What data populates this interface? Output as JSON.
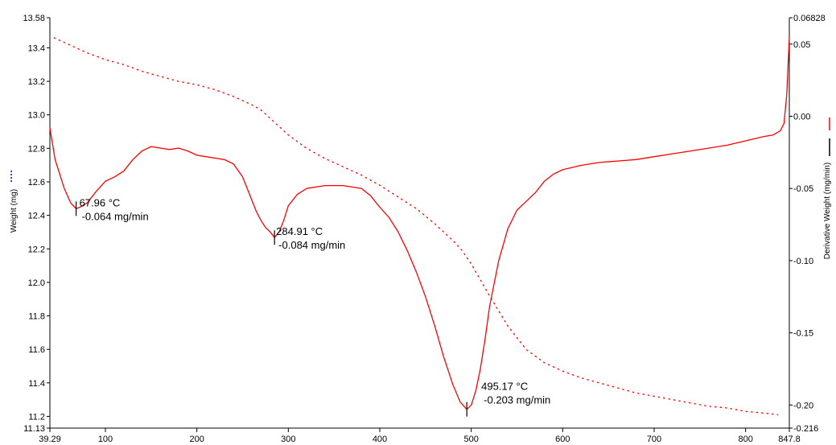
{
  "chart_data": {
    "type": "line",
    "title": "",
    "xlabel": "",
    "ylabel_left": "Weight (mg)",
    "ylabel_right": "Derivative Weight (mg/min)",
    "xlim": [
      39.29,
      847.8
    ],
    "ylim_left": [
      11.13,
      13.58
    ],
    "ylim_right": [
      -0.216,
      0.06828
    ],
    "grid": false,
    "x_ticks": [
      {
        "value": 39.29,
        "label": "39.29"
      },
      {
        "value": 100,
        "label": "100"
      },
      {
        "value": 200,
        "label": "200"
      },
      {
        "value": 300,
        "label": "300"
      },
      {
        "value": 400,
        "label": "400"
      },
      {
        "value": 500,
        "label": "500"
      },
      {
        "value": 600,
        "label": "600"
      },
      {
        "value": 700,
        "label": "700"
      },
      {
        "value": 800,
        "label": "800"
      },
      {
        "value": 847.8,
        "label": "847.8"
      }
    ],
    "y_left_ticks": [
      {
        "value": 13.58,
        "label": "13.58"
      },
      {
        "value": 13.4,
        "label": "13.4"
      },
      {
        "value": 13.2,
        "label": "13.2"
      },
      {
        "value": 13.0,
        "label": "13.0"
      },
      {
        "value": 12.8,
        "label": "12.8"
      },
      {
        "value": 12.6,
        "label": "12.6"
      },
      {
        "value": 12.4,
        "label": "12.4"
      },
      {
        "value": 12.2,
        "label": "12.2"
      },
      {
        "value": 12.0,
        "label": "12.0"
      },
      {
        "value": 11.8,
        "label": "11.8"
      },
      {
        "value": 11.6,
        "label": "11.6"
      },
      {
        "value": 11.4,
        "label": "11.4"
      },
      {
        "value": 11.2,
        "label": "11.2"
      },
      {
        "value": 11.13,
        "label": "11.13"
      }
    ],
    "y_right_ticks": [
      {
        "value": 0.06828,
        "label": "0.06828"
      },
      {
        "value": 0.05,
        "label": "0.05"
      },
      {
        "value": 0.0,
        "label": "0.00"
      },
      {
        "value": -0.05,
        "label": "-0.05"
      },
      {
        "value": -0.1,
        "label": "-0.10"
      },
      {
        "value": -0.15,
        "label": "-0.15"
      },
      {
        "value": -0.2,
        "label": "-0.20"
      },
      {
        "value": -0.216,
        "label": "-0.216"
      }
    ],
    "series": [
      {
        "axis": "left",
        "style": "dotted",
        "color": "#ff0000",
        "points": [
          [
            44,
            13.46
          ],
          [
            60,
            13.42
          ],
          [
            80,
            13.37
          ],
          [
            100,
            13.33
          ],
          [
            120,
            13.3
          ],
          [
            140,
            13.26
          ],
          [
            160,
            13.23
          ],
          [
            180,
            13.2
          ],
          [
            200,
            13.18
          ],
          [
            220,
            13.15
          ],
          [
            240,
            13.11
          ],
          [
            260,
            13.06
          ],
          [
            270,
            13.03
          ],
          [
            280,
            12.98
          ],
          [
            290,
            12.93
          ],
          [
            300,
            12.88
          ],
          [
            320,
            12.8
          ],
          [
            340,
            12.74
          ],
          [
            360,
            12.69
          ],
          [
            380,
            12.64
          ],
          [
            400,
            12.58
          ],
          [
            420,
            12.51
          ],
          [
            440,
            12.44
          ],
          [
            460,
            12.35
          ],
          [
            480,
            12.25
          ],
          [
            490,
            12.19
          ],
          [
            500,
            12.11
          ],
          [
            520,
            11.92
          ],
          [
            540,
            11.74
          ],
          [
            560,
            11.6
          ],
          [
            580,
            11.52
          ],
          [
            600,
            11.47
          ],
          [
            620,
            11.43
          ],
          [
            640,
            11.4
          ],
          [
            660,
            11.37
          ],
          [
            680,
            11.34
          ],
          [
            700,
            11.32
          ],
          [
            720,
            11.3
          ],
          [
            740,
            11.28
          ],
          [
            760,
            11.26
          ],
          [
            780,
            11.25
          ],
          [
            800,
            11.23
          ],
          [
            820,
            11.22
          ],
          [
            835,
            11.21
          ]
        ]
      },
      {
        "axis": "right",
        "style": "solid",
        "color": "#ff0000",
        "points": [
          [
            39.29,
            -0.008
          ],
          [
            45,
            -0.03
          ],
          [
            55,
            -0.05
          ],
          [
            62,
            -0.06
          ],
          [
            67.96,
            -0.064
          ],
          [
            72,
            -0.063
          ],
          [
            80,
            -0.06
          ],
          [
            90,
            -0.052
          ],
          [
            100,
            -0.045
          ],
          [
            110,
            -0.042
          ],
          [
            120,
            -0.038
          ],
          [
            130,
            -0.03
          ],
          [
            140,
            -0.024
          ],
          [
            150,
            -0.021
          ],
          [
            160,
            -0.022
          ],
          [
            170,
            -0.023
          ],
          [
            180,
            -0.022
          ],
          [
            190,
            -0.024
          ],
          [
            200,
            -0.027
          ],
          [
            210,
            -0.028
          ],
          [
            220,
            -0.029
          ],
          [
            230,
            -0.03
          ],
          [
            240,
            -0.033
          ],
          [
            250,
            -0.042
          ],
          [
            260,
            -0.058
          ],
          [
            265,
            -0.066
          ],
          [
            270,
            -0.072
          ],
          [
            275,
            -0.077
          ],
          [
            280,
            -0.08
          ],
          [
            284.91,
            -0.084
          ],
          [
            290,
            -0.08
          ],
          [
            295,
            -0.072
          ],
          [
            300,
            -0.062
          ],
          [
            310,
            -0.054
          ],
          [
            320,
            -0.05
          ],
          [
            340,
            -0.048
          ],
          [
            360,
            -0.048
          ],
          [
            380,
            -0.05
          ],
          [
            390,
            -0.055
          ],
          [
            400,
            -0.063
          ],
          [
            410,
            -0.07
          ],
          [
            420,
            -0.08
          ],
          [
            430,
            -0.093
          ],
          [
            440,
            -0.108
          ],
          [
            450,
            -0.125
          ],
          [
            460,
            -0.145
          ],
          [
            470,
            -0.167
          ],
          [
            480,
            -0.186
          ],
          [
            488,
            -0.198
          ],
          [
            495.17,
            -0.203
          ],
          [
            500,
            -0.2
          ],
          [
            505,
            -0.19
          ],
          [
            510,
            -0.175
          ],
          [
            515,
            -0.155
          ],
          [
            520,
            -0.132
          ],
          [
            530,
            -0.1
          ],
          [
            540,
            -0.078
          ],
          [
            550,
            -0.065
          ],
          [
            560,
            -0.059
          ],
          [
            570,
            -0.053
          ],
          [
            580,
            -0.045
          ],
          [
            590,
            -0.04
          ],
          [
            600,
            -0.037
          ],
          [
            620,
            -0.034
          ],
          [
            640,
            -0.032
          ],
          [
            660,
            -0.031
          ],
          [
            680,
            -0.03
          ],
          [
            700,
            -0.028
          ],
          [
            720,
            -0.026
          ],
          [
            740,
            -0.024
          ],
          [
            760,
            -0.022
          ],
          [
            780,
            -0.02
          ],
          [
            800,
            -0.017
          ],
          [
            820,
            -0.014
          ],
          [
            830,
            -0.013
          ],
          [
            838,
            -0.01
          ],
          [
            842,
            -0.005
          ],
          [
            845,
            0.015
          ],
          [
            847.8,
            0.055
          ]
        ]
      }
    ],
    "annotations": [
      {
        "x": 67.96,
        "y": -0.064,
        "temp": "67.96 °C",
        "rate": "-0.064 mg/min"
      },
      {
        "x": 284.91,
        "y": -0.084,
        "temp": "284.91 °C",
        "rate": "-0.084 mg/min"
      },
      {
        "x": 495.17,
        "y": -0.203,
        "temp": "495.17 °C",
        "rate": "-0.203 mg/min"
      }
    ]
  }
}
